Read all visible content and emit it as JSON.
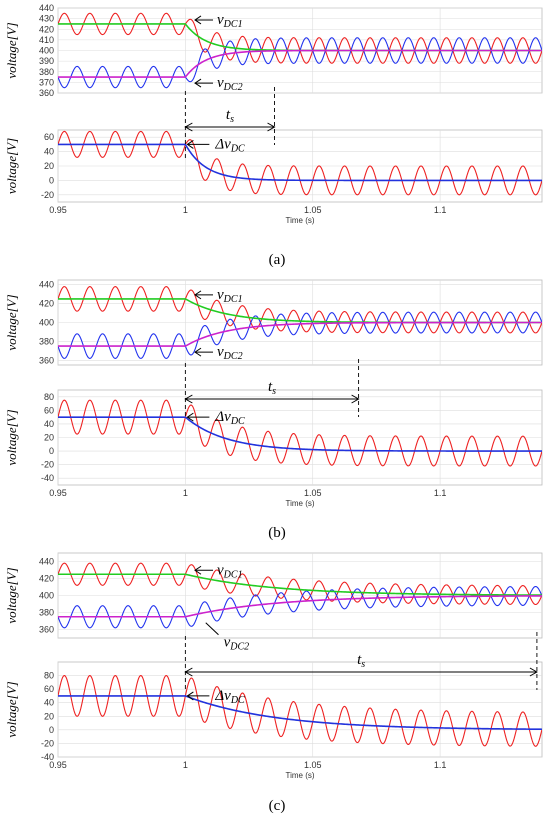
{
  "figure": {
    "captions": [
      "(a)",
      "(b)",
      "(c)"
    ],
    "ylabel": "voltage[V]",
    "xlabel": "Time (s)"
  },
  "annotations": {
    "vdc1": "v",
    "vdc1_sub": "DC1",
    "vdc2": "v",
    "vdc2_sub": "DC2",
    "delta": "Δv",
    "delta_sub": "DC",
    "ts": "t",
    "ts_sub": "s"
  },
  "colors": {
    "vdc1_ripple": "#ee2222",
    "vdc2_ripple": "#2233ee",
    "vdc1_avg": "#22cc22",
    "vdc2_avg": "#cc22cc",
    "delta_avg": "#2233dd",
    "grid": "#dddddd"
  },
  "chart_data": [
    {
      "type": "line",
      "panel": "a-top",
      "x_range": [
        0.95,
        1.14
      ],
      "ylim": [
        360,
        440
      ],
      "yticks": [
        360,
        370,
        380,
        390,
        400,
        410,
        420,
        430,
        440
      ],
      "xticks": [],
      "step_time": 1.0,
      "settle_tau": 0.008,
      "ripple_freq_hz": 100,
      "series": [
        {
          "name": "vDC1",
          "avg_initial": 425,
          "avg_final": 400,
          "ripple_initial": 10,
          "ripple_final": 12
        },
        {
          "name": "vDC2",
          "avg_initial": 375,
          "avg_final": 400,
          "ripple_initial": 10,
          "ripple_final": 12
        }
      ],
      "ts_span": [
        1.0,
        1.035
      ]
    },
    {
      "type": "line",
      "panel": "a-bottom",
      "x_range": [
        0.95,
        1.14
      ],
      "ylim": [
        -30,
        70
      ],
      "yticks": [
        -20,
        0,
        20,
        40,
        60
      ],
      "xticks": [
        0.95,
        1,
        1.05,
        1.1
      ],
      "step_time": 1.0,
      "settle_tau": 0.008,
      "ripple_freq_hz": 100,
      "series": [
        {
          "name": "ΔvDC",
          "avg_initial": 50,
          "avg_final": 0,
          "ripple_initial": 18,
          "ripple_final": 20
        }
      ]
    },
    {
      "type": "line",
      "panel": "b-top",
      "x_range": [
        0.95,
        1.14
      ],
      "ylim": [
        355,
        445
      ],
      "yticks": [
        360,
        380,
        400,
        420,
        440
      ],
      "xticks": [],
      "step_time": 1.0,
      "settle_tau": 0.016,
      "ripple_freq_hz": 100,
      "series": [
        {
          "name": "vDC1",
          "avg_initial": 425,
          "avg_final": 400,
          "ripple_initial": 13,
          "ripple_final": 11
        },
        {
          "name": "vDC2",
          "avg_initial": 375,
          "avg_final": 400,
          "ripple_initial": 13,
          "ripple_final": 11
        }
      ],
      "ts_span": [
        1.0,
        1.068
      ]
    },
    {
      "type": "line",
      "panel": "b-bottom",
      "x_range": [
        0.95,
        1.14
      ],
      "ylim": [
        -50,
        90
      ],
      "yticks": [
        -40,
        -20,
        0,
        20,
        40,
        60,
        80
      ],
      "xticks": [
        0.95,
        1,
        1.05,
        1.1
      ],
      "step_time": 1.0,
      "settle_tau": 0.016,
      "ripple_freq_hz": 100,
      "series": [
        {
          "name": "ΔvDC",
          "avg_initial": 50,
          "avg_final": 0,
          "ripple_initial": 25,
          "ripple_final": 22
        }
      ]
    },
    {
      "type": "line",
      "panel": "c-top",
      "x_range": [
        0.95,
        1.14
      ],
      "ylim": [
        350,
        450
      ],
      "yticks": [
        360,
        380,
        400,
        420,
        440
      ],
      "xticks": [],
      "step_time": 1.0,
      "settle_tau": 0.035,
      "ripple_freq_hz": 100,
      "series": [
        {
          "name": "vDC1",
          "avg_initial": 425,
          "avg_final": 400,
          "ripple_initial": 13,
          "ripple_final": 11
        },
        {
          "name": "vDC2",
          "avg_initial": 375,
          "avg_final": 400,
          "ripple_initial": 13,
          "ripple_final": 11
        }
      ],
      "ts_span": [
        1.0,
        1.138
      ]
    },
    {
      "type": "line",
      "panel": "c-bottom",
      "x_range": [
        0.95,
        1.14
      ],
      "ylim": [
        -40,
        100
      ],
      "yticks": [
        -40,
        -20,
        0,
        20,
        40,
        60,
        80
      ],
      "xticks": [
        0.95,
        1,
        1.05,
        1.1
      ],
      "step_time": 1.0,
      "settle_tau": 0.035,
      "ripple_freq_hz": 100,
      "series": [
        {
          "name": "ΔvDC",
          "avg_initial": 50,
          "avg_final": 0,
          "ripple_initial": 30,
          "ripple_final": 25
        }
      ]
    }
  ]
}
